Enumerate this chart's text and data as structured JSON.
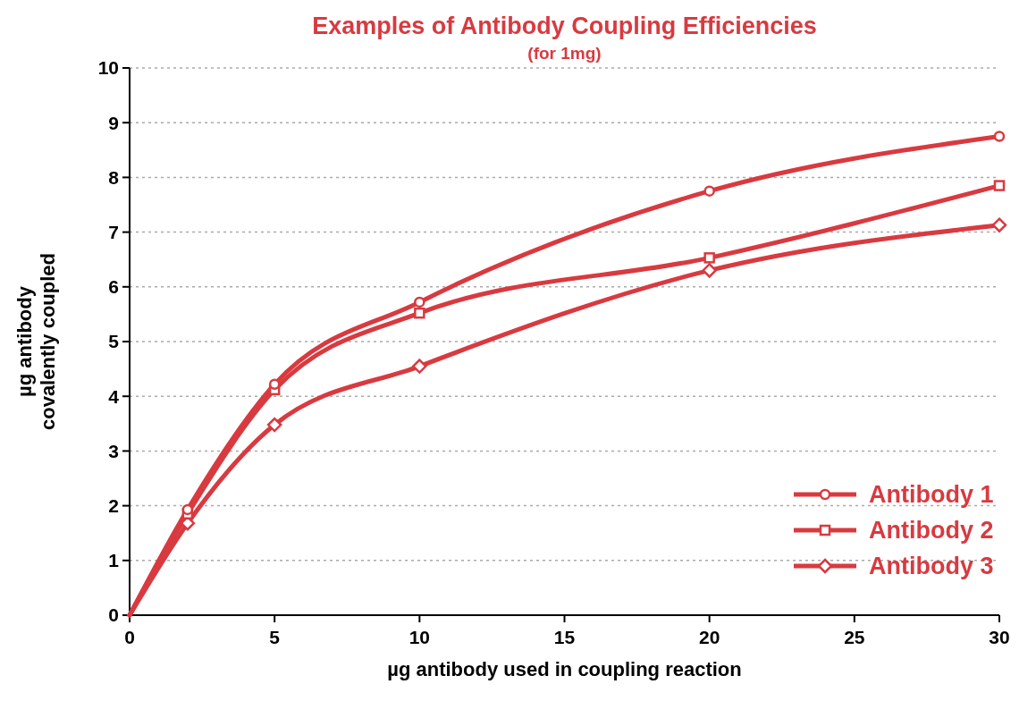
{
  "chart_data": {
    "type": "line",
    "title": "Examples of Antibody Coupling Efficiencies",
    "subtitle": "(for 1mg)",
    "xlabel": "µg antibody used in coupling reaction",
    "ylabel": "µg antibody\ncovalently coupled",
    "x": [
      0,
      2,
      5,
      10,
      20,
      30
    ],
    "series": [
      {
        "name": "Antibody 1",
        "color": "#d83a40",
        "marker": "circle",
        "values": [
          0,
          1.93,
          4.22,
          5.72,
          7.75,
          8.75
        ]
      },
      {
        "name": "Antibody 2",
        "color": "#d83a40",
        "marker": "square",
        "values": [
          0,
          1.85,
          4.12,
          5.52,
          6.53,
          7.85
        ]
      },
      {
        "name": "Antibody 3",
        "color": "#d83a40",
        "marker": "diamond",
        "values": [
          0,
          1.68,
          3.48,
          4.55,
          6.3,
          7.13
        ]
      }
    ],
    "xlim": [
      0,
      30
    ],
    "xticks": [
      0,
      5,
      10,
      15,
      20,
      25,
      30
    ],
    "ylim": [
      0,
      10
    ],
    "yticks": [
      0,
      1,
      2,
      3,
      4,
      5,
      6,
      7,
      8,
      9,
      10
    ],
    "grid": "y",
    "legend": "bottom right",
    "line_style": "solid"
  }
}
